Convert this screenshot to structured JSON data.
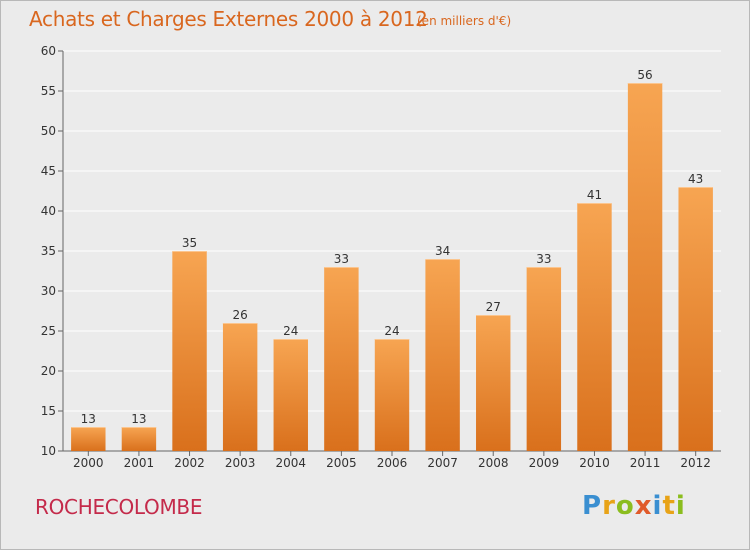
{
  "header": {
    "title": "Achats et Charges Externes 2000 à 2012",
    "subtitle": "(en milliers d'€)"
  },
  "footer": {
    "commune": "ROCHECOLOMBE",
    "logo_text": "Proxiti"
  },
  "colors": {
    "bar_light": "#f7a552",
    "bar_dark": "#d9701c",
    "title": "#d9671f",
    "commune": "#c42a4a"
  },
  "chart_data": {
    "type": "bar",
    "title": "Achats et Charges Externes 2000 à 2012",
    "subtitle": "(en milliers d'€)",
    "xlabel": "",
    "ylabel": "",
    "categories": [
      "2000",
      "2001",
      "2002",
      "2003",
      "2004",
      "2005",
      "2006",
      "2007",
      "2008",
      "2009",
      "2010",
      "2011",
      "2012"
    ],
    "values": [
      13,
      13,
      35,
      26,
      24,
      33,
      24,
      34,
      27,
      33,
      41,
      56,
      43
    ],
    "ylim": [
      10,
      60
    ],
    "yticks": [
      10,
      15,
      20,
      25,
      30,
      35,
      40,
      45,
      50,
      55,
      60
    ],
    "grid": true,
    "legend": "none"
  }
}
